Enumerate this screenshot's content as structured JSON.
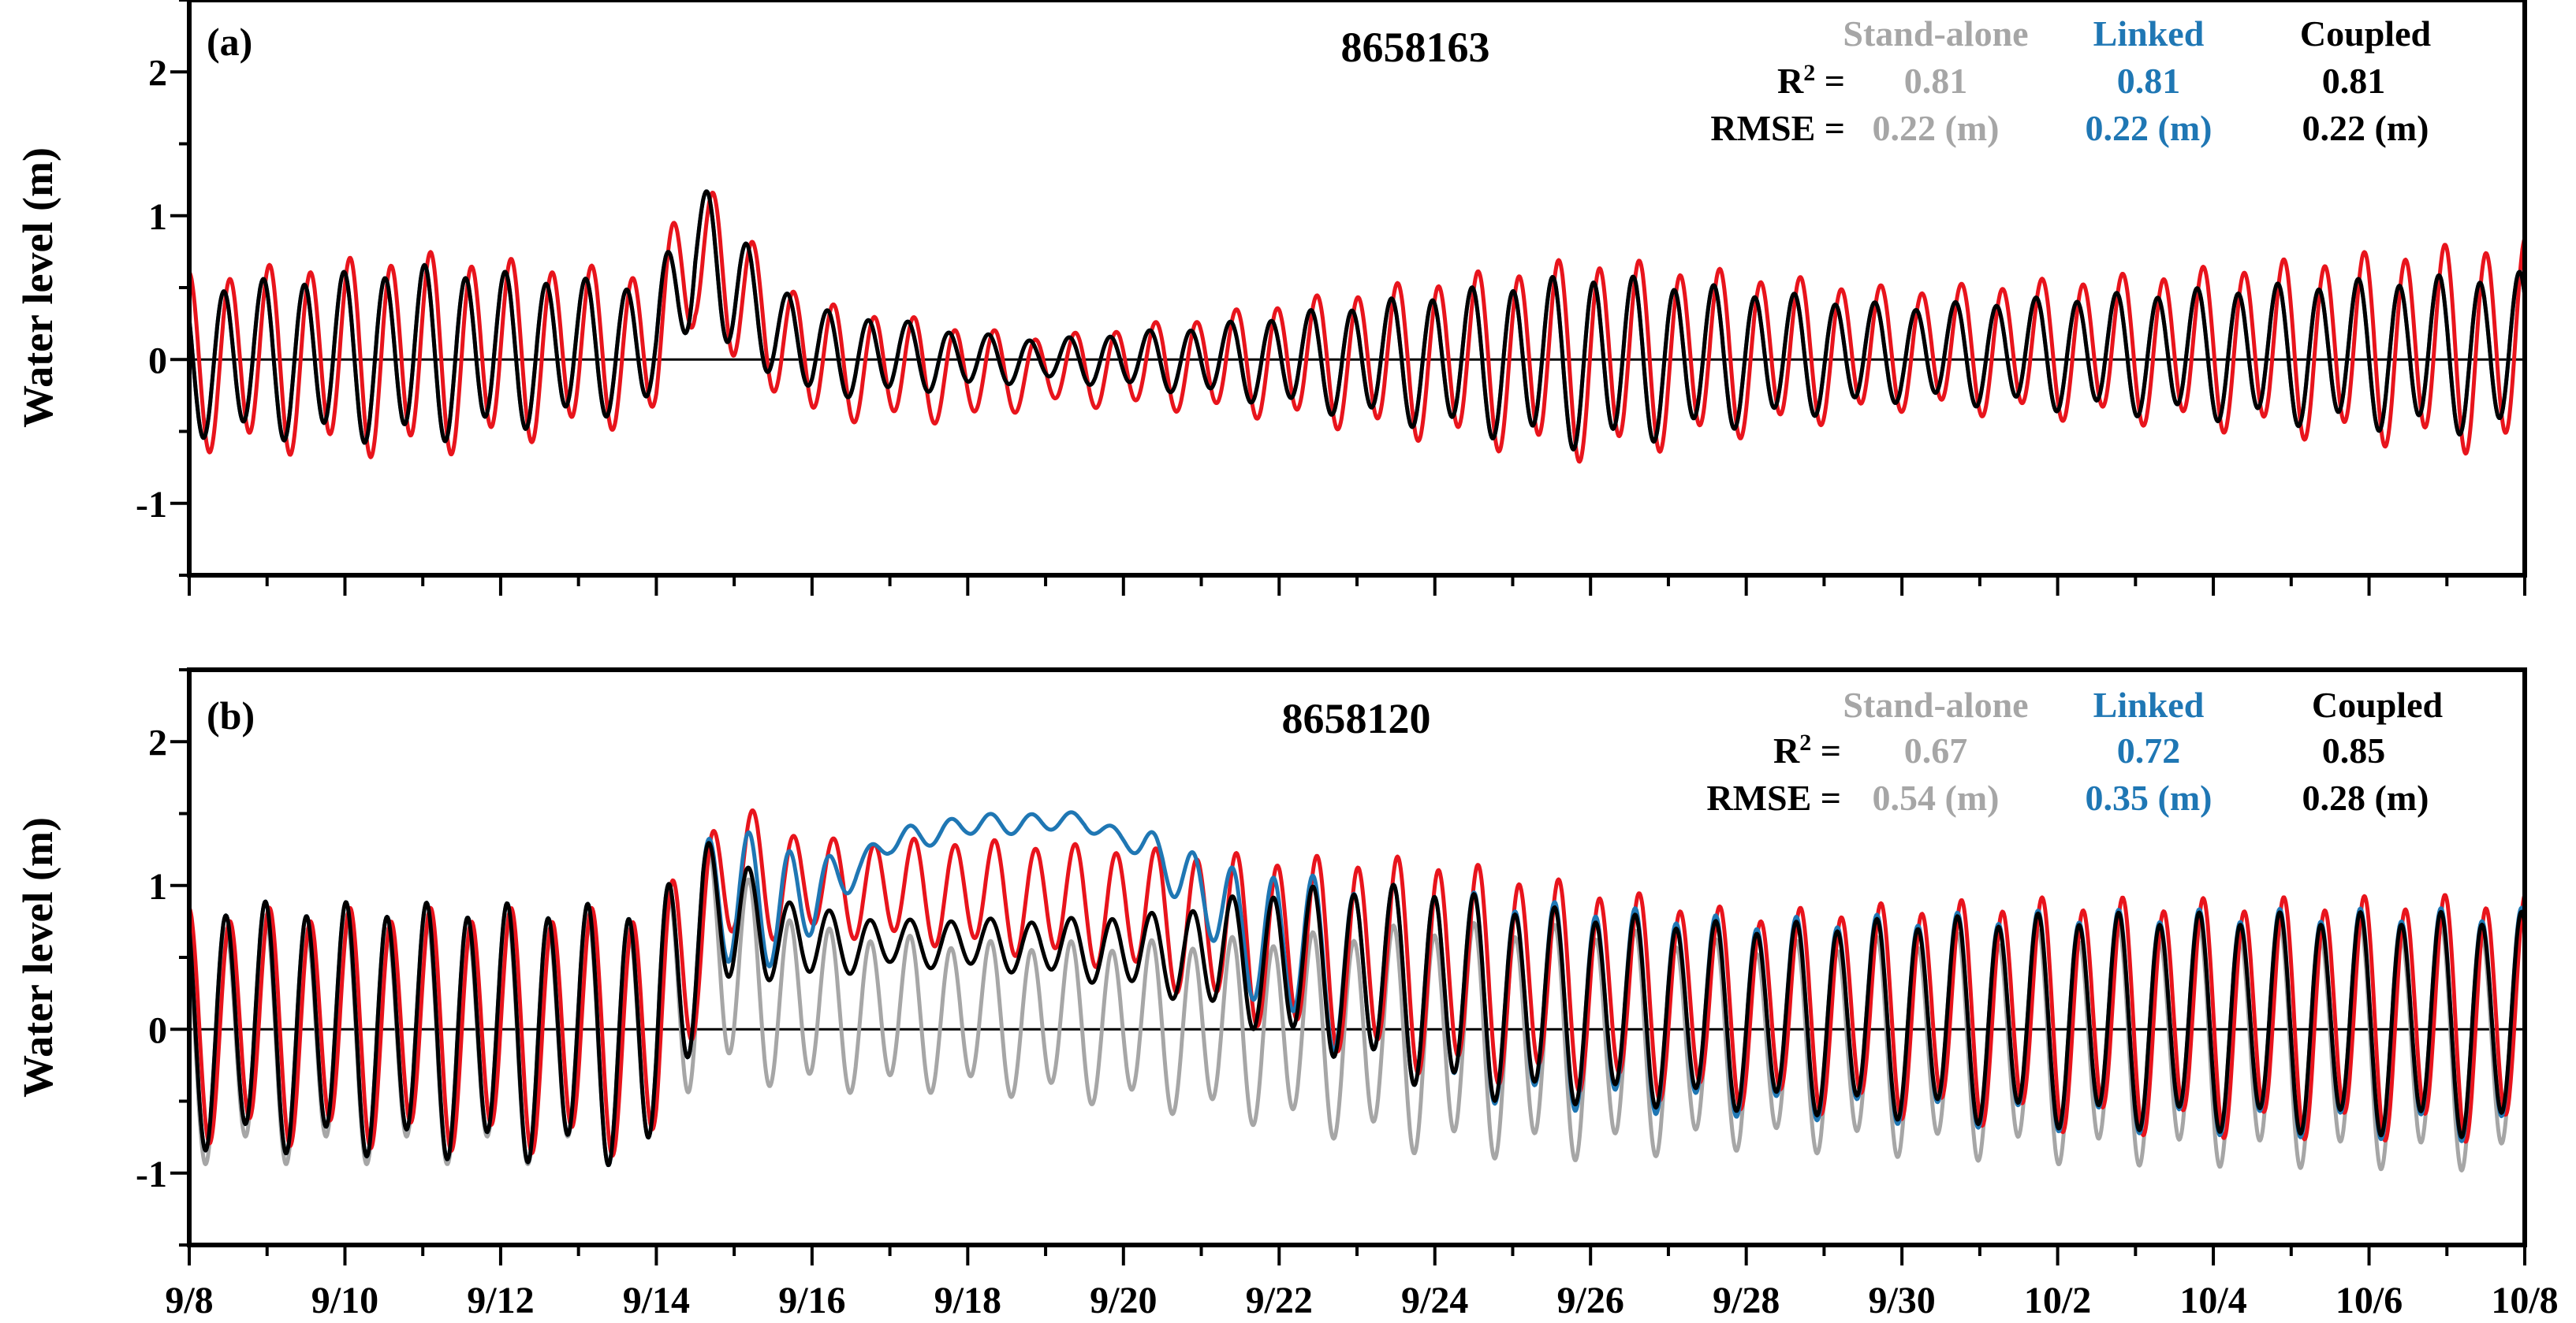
{
  "colors": {
    "observed": "#e8141c",
    "stand_alone": "#a6a6a6",
    "linked": "#1f77b4",
    "coupled": "#000000",
    "zero_line": "#000000"
  },
  "chart_data": [
    {
      "type": "line",
      "panel_label": "(a)",
      "title": "8658163",
      "ylabel": "Water level (m)",
      "xlabel": "",
      "xlim": [
        "2018-09-08",
        "2018-10-08"
      ],
      "ylim": [
        -1.5,
        2.5
      ],
      "y_ticks": [
        -1,
        0,
        1,
        2
      ],
      "x_tick_labels": [],
      "x_tick_dates": [
        "2018-09-08",
        "2018-09-10",
        "2018-09-12",
        "2018-09-14",
        "2018-09-16",
        "2018-09-18",
        "2018-09-20",
        "2018-09-22",
        "2018-09-24",
        "2018-09-26",
        "2018-09-28",
        "2018-09-30",
        "2018-10-02",
        "2018-10-04",
        "2018-10-06",
        "2018-10-08"
      ],
      "stats": {
        "headers": [
          "Stand-alone",
          "Linked",
          "Coupled"
        ],
        "rows": [
          {
            "label": "R",
            "sup": "2",
            "suffix": " =",
            "values": [
              "0.81",
              "0.81",
              "0.81"
            ]
          },
          {
            "label": "RMSE =",
            "sup": "",
            "suffix": "",
            "values": [
              "0.22 (m)",
              "0.22 (m)",
              "0.22 (m)"
            ]
          }
        ]
      },
      "series": [
        {
          "key": "observed",
          "model": {
            "mean": [
              [
                0,
                0.0
              ],
              [
                6,
                0.1
              ],
              [
                6.5,
                0.85
              ],
              [
                7,
                0.45
              ],
              [
                8,
                0.0
              ],
              [
                10,
                -0.1
              ],
              [
                14,
                0.0
              ],
              [
                18,
                0.02
              ],
              [
                22,
                0.08
              ],
              [
                30,
                0.1
              ]
            ],
            "amp": [
              [
                0,
                0.65
              ],
              [
                3,
                0.75
              ],
              [
                6,
                0.55
              ],
              [
                6.8,
                0.6
              ],
              [
                7.5,
                0.45
              ],
              [
                9,
                0.4
              ],
              [
                10,
                0.35
              ],
              [
                11,
                0.25
              ],
              [
                13,
                0.35
              ],
              [
                16,
                0.6
              ],
              [
                18,
                0.75
              ],
              [
                20,
                0.6
              ],
              [
                22,
                0.45
              ],
              [
                25,
                0.55
              ],
              [
                28,
                0.7
              ],
              [
                30,
                0.8
              ]
            ],
            "phase": 0.0
          }
        },
        {
          "key": "stand_alone",
          "model": {
            "mean": [
              [
                0,
                0.0
              ],
              [
                6,
                0.1
              ],
              [
                6.5,
                0.85
              ],
              [
                7,
                0.45
              ],
              [
                8,
                0.05
              ],
              [
                10,
                0.0
              ],
              [
                14,
                0.0
              ],
              [
                18,
                0.0
              ],
              [
                22,
                0.05
              ],
              [
                30,
                0.05
              ]
            ],
            "amp": [
              [
                0,
                0.55
              ],
              [
                3,
                0.65
              ],
              [
                6,
                0.45
              ],
              [
                6.8,
                0.55
              ],
              [
                7.5,
                0.35
              ],
              [
                9,
                0.28
              ],
              [
                10,
                0.2
              ],
              [
                11,
                0.15
              ],
              [
                13,
                0.25
              ],
              [
                16,
                0.5
              ],
              [
                18,
                0.65
              ],
              [
                20,
                0.5
              ],
              [
                22,
                0.35
              ],
              [
                25,
                0.45
              ],
              [
                28,
                0.55
              ],
              [
                30,
                0.6
              ]
            ],
            "phase": 0.15
          }
        },
        {
          "key": "linked",
          "model": {
            "mean": [
              [
                0,
                0.0
              ],
              [
                6,
                0.1
              ],
              [
                6.5,
                0.85
              ],
              [
                7,
                0.45
              ],
              [
                8,
                0.05
              ],
              [
                10,
                0.0
              ],
              [
                14,
                0.0
              ],
              [
                18,
                0.0
              ],
              [
                22,
                0.05
              ],
              [
                30,
                0.05
              ]
            ],
            "amp": [
              [
                0,
                0.55
              ],
              [
                3,
                0.65
              ],
              [
                6,
                0.45
              ],
              [
                6.8,
                0.55
              ],
              [
                7.5,
                0.35
              ],
              [
                9,
                0.28
              ],
              [
                10,
                0.2
              ],
              [
                11,
                0.15
              ],
              [
                13,
                0.25
              ],
              [
                16,
                0.5
              ],
              [
                18,
                0.65
              ],
              [
                20,
                0.5
              ],
              [
                22,
                0.35
              ],
              [
                25,
                0.45
              ],
              [
                28,
                0.55
              ],
              [
                30,
                0.6
              ]
            ],
            "phase": 0.15
          }
        },
        {
          "key": "coupled",
          "model": {
            "mean": [
              [
                0,
                0.0
              ],
              [
                6,
                0.1
              ],
              [
                6.5,
                0.85
              ],
              [
                7,
                0.45
              ],
              [
                8,
                0.05
              ],
              [
                10,
                0.0
              ],
              [
                14,
                0.0
              ],
              [
                18,
                0.0
              ],
              [
                22,
                0.05
              ],
              [
                30,
                0.05
              ]
            ],
            "amp": [
              [
                0,
                0.55
              ],
              [
                3,
                0.65
              ],
              [
                6,
                0.45
              ],
              [
                6.8,
                0.55
              ],
              [
                7.5,
                0.35
              ],
              [
                9,
                0.28
              ],
              [
                10,
                0.2
              ],
              [
                11,
                0.15
              ],
              [
                13,
                0.25
              ],
              [
                16,
                0.5
              ],
              [
                18,
                0.65
              ],
              [
                20,
                0.5
              ],
              [
                22,
                0.35
              ],
              [
                25,
                0.45
              ],
              [
                28,
                0.55
              ],
              [
                30,
                0.6
              ]
            ],
            "phase": 0.15
          }
        }
      ]
    },
    {
      "type": "line",
      "panel_label": "(b)",
      "title": "8658120",
      "ylabel": "Water level (m)",
      "xlabel": "",
      "xlim": [
        "2018-09-08",
        "2018-10-08"
      ],
      "ylim": [
        -1.5,
        2.5
      ],
      "y_ticks": [
        -1,
        0,
        1,
        2
      ],
      "x_tick_labels": [
        "9/8",
        "9/10",
        "9/12",
        "9/14",
        "9/16",
        "9/18",
        "9/20",
        "9/22",
        "9/24",
        "9/26",
        "9/28",
        "9/30",
        "10/2",
        "10/4",
        "10/6",
        "10/8"
      ],
      "x_tick_dates": [
        "2018-09-08",
        "2018-09-10",
        "2018-09-12",
        "2018-09-14",
        "2018-09-16",
        "2018-09-18",
        "2018-09-20",
        "2018-09-22",
        "2018-09-24",
        "2018-09-26",
        "2018-09-28",
        "2018-09-30",
        "2018-10-02",
        "2018-10-04",
        "2018-10-06",
        "2018-10-08"
      ],
      "stats": {
        "headers": [
          "Stand-alone",
          "Linked",
          "Coupled"
        ],
        "rows": [
          {
            "label": "R",
            "sup": "2",
            "suffix": " =",
            "values": [
              "0.67",
              "0.72",
              "0.85"
            ]
          },
          {
            "label": "RMSE =",
            "sup": "",
            "suffix": "",
            "values": [
              "0.54 (m)",
              "0.35 (m)",
              "0.28 (m)"
            ]
          }
        ]
      },
      "series": [
        {
          "key": "observed",
          "model": {
            "mean": [
              [
                0,
                0.05
              ],
              [
                6,
                0.0
              ],
              [
                6.6,
                0.8
              ],
              [
                7,
                1.1
              ],
              [
                8,
                1.0
              ],
              [
                10,
                0.95
              ],
              [
                12,
                0.85
              ],
              [
                14,
                0.6
              ],
              [
                16,
                0.45
              ],
              [
                18,
                0.3
              ],
              [
                20,
                0.15
              ],
              [
                22,
                0.15
              ],
              [
                26,
                0.1
              ],
              [
                30,
                0.1
              ]
            ],
            "amp": [
              [
                0,
                0.85
              ],
              [
                6,
                0.9
              ],
              [
                6.8,
                0.55
              ],
              [
                8,
                0.35
              ],
              [
                10,
                0.4
              ],
              [
                12,
                0.45
              ],
              [
                14,
                0.65
              ],
              [
                16,
                0.8
              ],
              [
                18,
                0.75
              ],
              [
                20,
                0.72
              ],
              [
                24,
                0.85
              ],
              [
                30,
                0.9
              ]
            ],
            "phase": 0.0
          }
        },
        {
          "key": "stand_alone",
          "model": {
            "mean": [
              [
                0,
                -0.05
              ],
              [
                6,
                -0.05
              ],
              [
                6.6,
                0.6
              ],
              [
                7,
                0.4
              ],
              [
                8,
                0.15
              ],
              [
                10,
                0.1
              ],
              [
                12,
                0.05
              ],
              [
                14,
                0.0
              ],
              [
                16,
                -0.05
              ],
              [
                20,
                -0.1
              ],
              [
                30,
                -0.1
              ]
            ],
            "amp": [
              [
                0,
                0.9
              ],
              [
                6,
                0.9
              ],
              [
                6.8,
                0.8
              ],
              [
                8,
                0.6
              ],
              [
                10,
                0.55
              ],
              [
                12,
                0.6
              ],
              [
                14,
                0.7
              ],
              [
                16,
                0.85
              ],
              [
                18,
                0.85
              ],
              [
                20,
                0.75
              ],
              [
                24,
                0.85
              ],
              [
                30,
                0.9
              ]
            ],
            "phase": 0.1
          }
        },
        {
          "key": "linked",
          "model": {
            "mean": [
              [
                0,
                0.05
              ],
              [
                6,
                -0.02
              ],
              [
                6.6,
                0.8
              ],
              [
                7,
                0.9
              ],
              [
                8,
                0.9
              ],
              [
                9,
                1.3
              ],
              [
                10,
                1.42
              ],
              [
                11.5,
                1.45
              ],
              [
                12.5,
                1.2
              ],
              [
                13.5,
                0.7
              ],
              [
                15,
                0.4
              ],
              [
                17,
                0.2
              ],
              [
                20,
                0.1
              ],
              [
                30,
                0.05
              ]
            ],
            "amp": [
              [
                0,
                0.9
              ],
              [
                6,
                0.95
              ],
              [
                6.8,
                0.55
              ],
              [
                7.6,
                0.45
              ],
              [
                8.6,
                0.1
              ],
              [
                10,
                0.08
              ],
              [
                12,
                0.06
              ],
              [
                12.8,
                0.25
              ],
              [
                14,
                0.55
              ],
              [
                16,
                0.75
              ],
              [
                18,
                0.75
              ],
              [
                20,
                0.72
              ],
              [
                24,
                0.8
              ],
              [
                30,
                0.85
              ]
            ],
            "phase": 0.1
          }
        },
        {
          "key": "coupled",
          "model": {
            "mean": [
              [
                0,
                0.05
              ],
              [
                6,
                -0.02
              ],
              [
                6.6,
                0.8
              ],
              [
                7,
                0.75
              ],
              [
                8,
                0.6
              ],
              [
                10,
                0.6
              ],
              [
                12,
                0.55
              ],
              [
                13.5,
                0.5
              ],
              [
                15,
                0.4
              ],
              [
                17,
                0.2
              ],
              [
                20,
                0.1
              ],
              [
                30,
                0.05
              ]
            ],
            "amp": [
              [
                0,
                0.9
              ],
              [
                6,
                0.95
              ],
              [
                6.8,
                0.55
              ],
              [
                7.6,
                0.3
              ],
              [
                9,
                0.17
              ],
              [
                11,
                0.2
              ],
              [
                12.5,
                0.3
              ],
              [
                14,
                0.55
              ],
              [
                16,
                0.75
              ],
              [
                18,
                0.7
              ],
              [
                20,
                0.68
              ],
              [
                24,
                0.78
              ],
              [
                30,
                0.82
              ]
            ],
            "phase": 0.1
          }
        }
      ]
    }
  ]
}
